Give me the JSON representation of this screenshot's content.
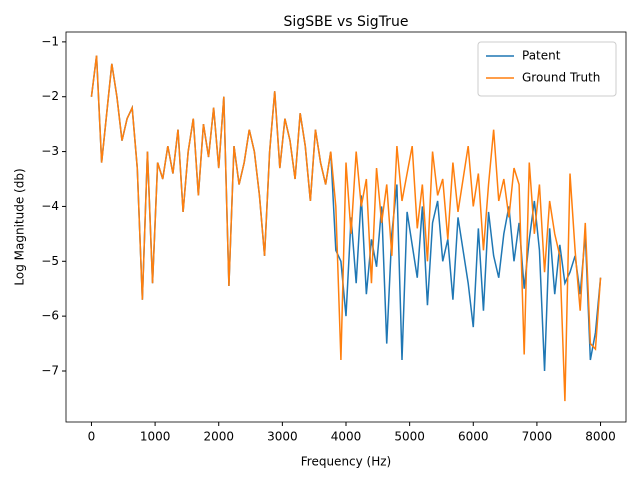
{
  "chart_data": {
    "type": "line",
    "title": "SigSBE vs SigTrue",
    "x_label": "Frequency (Hz)",
    "y_label": "Log Magnitude (db)",
    "x": [
      0,
      80,
      160,
      240,
      320,
      400,
      480,
      560,
      640,
      720,
      800,
      880,
      960,
      1040,
      1120,
      1200,
      1280,
      1360,
      1440,
      1520,
      1600,
      1680,
      1760,
      1840,
      1920,
      2000,
      2080,
      2160,
      2240,
      2320,
      2400,
      2480,
      2560,
      2640,
      2720,
      2800,
      2880,
      2960,
      3040,
      3120,
      3200,
      3280,
      3360,
      3440,
      3520,
      3600,
      3680,
      3760,
      3840,
      3920,
      4000,
      4080,
      4160,
      4240,
      4320,
      4400,
      4480,
      4560,
      4640,
      4720,
      4800,
      4880,
      4960,
      5040,
      5120,
      5200,
      5280,
      5360,
      5440,
      5520,
      5600,
      5680,
      5760,
      5840,
      5920,
      6000,
      6080,
      6160,
      6240,
      6320,
      6400,
      6480,
      6560,
      6640,
      6720,
      6800,
      6880,
      6960,
      7040,
      7120,
      7200,
      7280,
      7360,
      7440,
      7520,
      7600,
      7680,
      7760,
      7840,
      7920,
      8000
    ],
    "series": [
      {
        "name": "Patent",
        "color": "#1f77b4",
        "values": [
          -2.0,
          -1.25,
          -3.2,
          -2.3,
          -1.4,
          -2.0,
          -2.8,
          -2.4,
          -2.2,
          -3.3,
          -5.7,
          -3.0,
          -5.4,
          -3.2,
          -3.5,
          -2.9,
          -3.4,
          -2.6,
          -4.1,
          -3.0,
          -2.4,
          -3.8,
          -2.5,
          -3.1,
          -2.2,
          -3.3,
          -2.0,
          -5.45,
          -2.9,
          -3.6,
          -3.2,
          -2.6,
          -3.0,
          -3.8,
          -4.9,
          -3.0,
          -1.9,
          -3.3,
          -2.4,
          -2.8,
          -3.5,
          -2.3,
          -2.9,
          -3.9,
          -2.6,
          -3.2,
          -3.6,
          -3.0,
          -4.8,
          -5.0,
          -6.0,
          -4.2,
          -5.4,
          -3.8,
          -5.6,
          -4.6,
          -5.1,
          -4.0,
          -6.5,
          -4.5,
          -3.6,
          -6.8,
          -4.1,
          -4.7,
          -5.3,
          -4.0,
          -5.8,
          -4.3,
          -3.9,
          -5.0,
          -4.6,
          -5.7,
          -4.2,
          -4.8,
          -5.4,
          -6.2,
          -4.4,
          -5.9,
          -4.1,
          -4.9,
          -5.3,
          -4.5,
          -4.0,
          -5.0,
          -4.3,
          -5.5,
          -4.6,
          -3.9,
          -4.8,
          -7.0,
          -4.4,
          -5.6,
          -4.7,
          -5.4,
          -5.2,
          -4.9,
          -5.6,
          -4.5,
          -6.8,
          -6.3,
          -5.3
        ]
      },
      {
        "name": "Ground Truth",
        "color": "#ff7f0e",
        "values": [
          -2.0,
          -1.25,
          -3.2,
          -2.3,
          -1.4,
          -2.0,
          -2.8,
          -2.4,
          -2.2,
          -3.3,
          -5.7,
          -3.0,
          -5.4,
          -3.2,
          -3.5,
          -2.9,
          -3.4,
          -2.6,
          -4.1,
          -3.0,
          -2.4,
          -3.8,
          -2.5,
          -3.1,
          -2.2,
          -3.3,
          -2.0,
          -5.45,
          -2.9,
          -3.6,
          -3.2,
          -2.6,
          -3.0,
          -3.8,
          -4.9,
          -3.0,
          -1.9,
          -3.3,
          -2.4,
          -2.8,
          -3.5,
          -2.3,
          -2.9,
          -3.9,
          -2.6,
          -3.2,
          -3.6,
          -3.0,
          -4.0,
          -6.8,
          -3.2,
          -4.5,
          -3.0,
          -4.0,
          -3.5,
          -5.4,
          -3.3,
          -4.3,
          -3.6,
          -4.9,
          -2.9,
          -3.9,
          -3.4,
          -2.9,
          -4.4,
          -3.6,
          -5.0,
          -3.0,
          -3.8,
          -3.5,
          -4.6,
          -3.2,
          -4.1,
          -3.5,
          -2.9,
          -4.0,
          -3.4,
          -4.8,
          -3.6,
          -2.6,
          -3.9,
          -3.5,
          -4.2,
          -3.3,
          -3.6,
          -6.7,
          -3.2,
          -4.5,
          -3.6,
          -5.2,
          -3.9,
          -4.5,
          -4.9,
          -7.55,
          -3.4,
          -4.8,
          -5.9,
          -4.3,
          -6.5,
          -6.6,
          -5.3
        ]
      }
    ],
    "xlim": [
      -400,
      8400
    ],
    "ylim": [
      -7.93,
      -0.82
    ],
    "xticks": [
      0,
      1000,
      2000,
      3000,
      4000,
      5000,
      6000,
      7000,
      8000
    ],
    "yticks": [
      {
        "value": -7,
        "label": "−7"
      },
      {
        "value": -6,
        "label": "−6"
      },
      {
        "value": -5,
        "label": "−5"
      },
      {
        "value": -4,
        "label": "−4"
      },
      {
        "value": -3,
        "label": "−3"
      },
      {
        "value": -2,
        "label": "−2"
      },
      {
        "value": -1,
        "label": "−1"
      }
    ],
    "legend": "upper right"
  }
}
